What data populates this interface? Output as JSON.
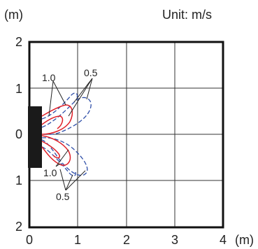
{
  "unit_y": "(m)",
  "unit_x": "(m)",
  "unit_label": "Unit: m/s",
  "y_ticks": [
    "2",
    "1",
    "0",
    "1",
    "2"
  ],
  "x_ticks": [
    "0",
    "1",
    "2",
    "3",
    "4"
  ],
  "contours": [
    {
      "value_label": "1.0",
      "color": "#e01e26",
      "style": "solid"
    },
    {
      "value_label": "0.5",
      "color": "#2f4fa8",
      "style": "dashed"
    }
  ],
  "annotations": {
    "top_inner": "1.0",
    "top_outer": "0.5",
    "bottom_inner": "1.0",
    "bottom_outer": "0.5"
  },
  "colors": {
    "grid": "#333333",
    "frame": "#111111",
    "source": "#1a1a1a",
    "inner_contour": "#e01e26",
    "outer_contour": "#2f4fa8"
  }
}
